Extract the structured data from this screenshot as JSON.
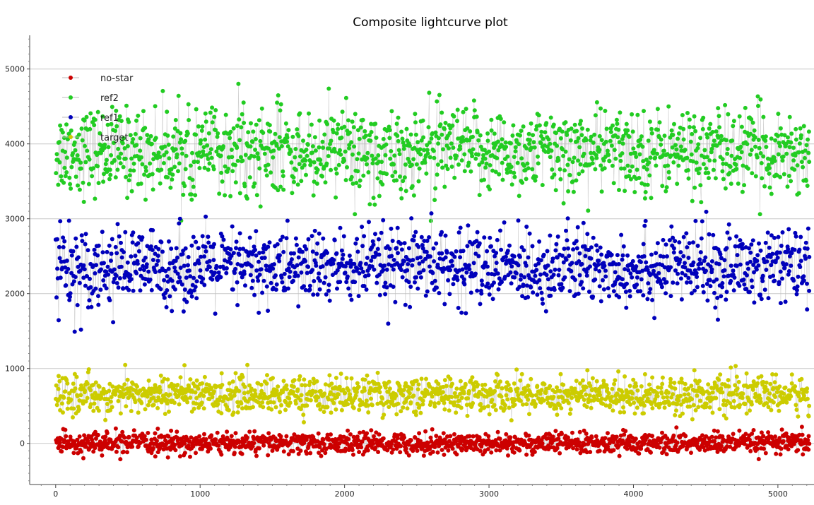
{
  "chart_data": {
    "type": "scatter",
    "title": "Composite lightcurve plot",
    "xlabel": "",
    "ylabel": "",
    "xlim": [
      -180,
      5250
    ],
    "ylim": [
      -550,
      5450
    ],
    "x_ticks": [
      0,
      1000,
      2000,
      3000,
      4000,
      5000
    ],
    "y_ticks": [
      0,
      1000,
      2000,
      3000,
      4000,
      5000
    ],
    "grid": "horizontal",
    "legend_placement": "top-left",
    "n_points_per_series": 5220,
    "series": [
      {
        "name": "no-star",
        "color": "#cc0000",
        "mean": 0,
        "spread": 70,
        "min": -380,
        "max": 300
      },
      {
        "name": "ref2",
        "color": "#22cc22",
        "mean": 3900,
        "spread": 280,
        "min": 2950,
        "max": 5180
      },
      {
        "name": "ref1",
        "color": "#0000bb",
        "mean": 2350,
        "spread": 250,
        "min": 1450,
        "max": 3100
      },
      {
        "name": "target",
        "color": "#cccc00",
        "mean": 650,
        "spread": 120,
        "min": -150,
        "max": 1080
      }
    ]
  }
}
